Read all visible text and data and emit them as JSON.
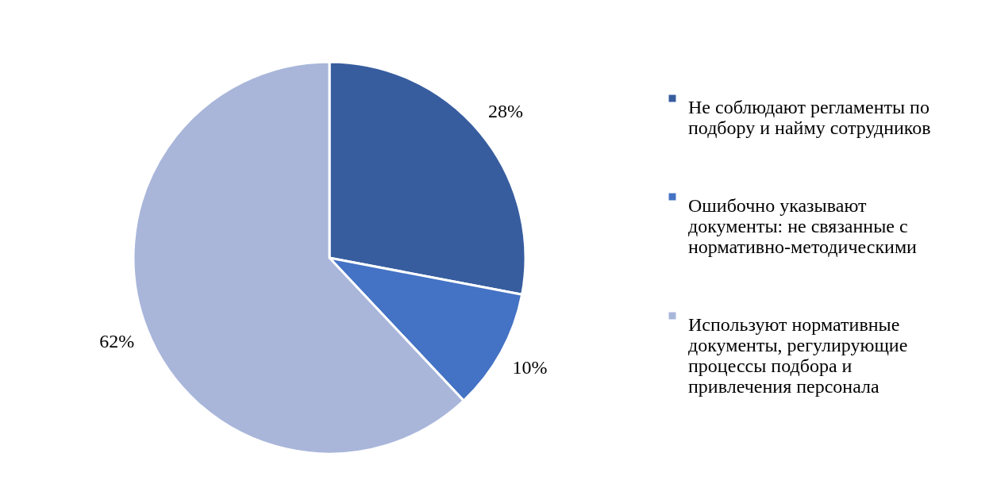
{
  "chart_data": {
    "type": "pie",
    "categories": [
      "Не соблюдают регламенты по подбору и найму сотрудников",
      "Ошибочно указывают документы: не связанные с нормативно-методическими",
      "Используют нормативные документы, регулирующие процессы подбора и привлечения персонала"
    ],
    "values": [
      28,
      10,
      62
    ],
    "colors": [
      "#375d9f",
      "#4472c4",
      "#a9b6da"
    ],
    "value_labels": [
      "28%",
      "10%",
      "62%"
    ],
    "legend": "right"
  }
}
